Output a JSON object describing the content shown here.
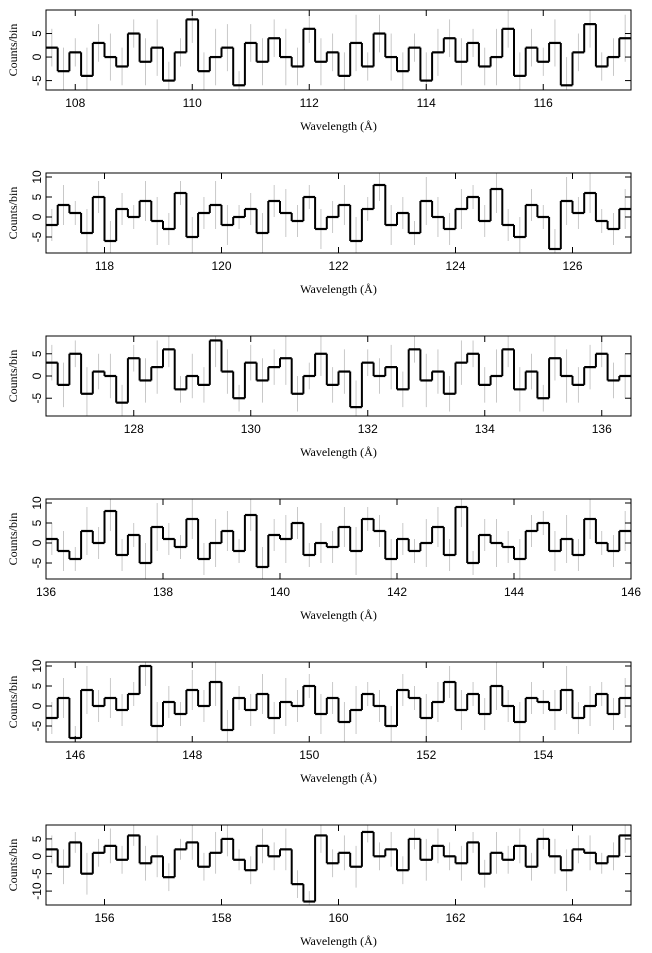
{
  "chart_data": [
    {
      "type": "step",
      "xlabel": "Wavelength (Å)",
      "ylabel": "Counts/bin",
      "color": "#000000",
      "error_color": "#bbbbbb",
      "xlim": [
        107.5,
        117.5
      ],
      "ylim": [
        -7,
        10
      ],
      "xticks": [
        108,
        110,
        112,
        114,
        116
      ],
      "yticks": [
        -5,
        0,
        5
      ],
      "x": [
        107.6,
        107.8,
        108,
        108.2,
        108.4,
        108.6,
        108.8,
        109,
        109.2,
        109.4,
        109.6,
        109.8,
        110,
        110.2,
        110.4,
        110.6,
        110.8,
        111,
        111.2,
        111.4,
        111.6,
        111.8,
        112,
        112.2,
        112.4,
        112.6,
        112.8,
        113,
        113.2,
        113.4,
        113.6,
        113.8,
        114,
        114.2,
        114.4,
        114.6,
        114.8,
        115,
        115.2,
        115.4,
        115.6,
        115.8,
        116,
        116.2,
        116.4,
        116.6,
        116.8,
        117,
        117.2,
        117.4
      ],
      "values": [
        2,
        -3,
        1,
        -4,
        3,
        0,
        -2,
        5,
        -1,
        2,
        -5,
        1,
        8,
        -3,
        0,
        2,
        -6,
        3,
        -1,
        4,
        0,
        -2,
        6,
        -1,
        1,
        -4,
        3,
        -2,
        5,
        0,
        -3,
        2,
        -5,
        1,
        4,
        -1,
        3,
        -2,
        0,
        6,
        -4,
        2,
        -1,
        3,
        -6,
        1,
        7,
        -2,
        0,
        4
      ],
      "errors": [
        4,
        5,
        3,
        6,
        4,
        5,
        4,
        3,
        5,
        6,
        4,
        3,
        5,
        4,
        6,
        5,
        3,
        4,
        5,
        4,
        6,
        4,
        3,
        5,
        4,
        5,
        6,
        3,
        4,
        5,
        4,
        3,
        6,
        5,
        4,
        5,
        3,
        4,
        6,
        4,
        5,
        4,
        3,
        5,
        6,
        4,
        5,
        3,
        4,
        5
      ]
    },
    {
      "type": "step",
      "xlabel": "Wavelength (Å)",
      "ylabel": "Counts/bin",
      "color": "#000000",
      "error_color": "#bbbbbb",
      "xlim": [
        117,
        127
      ],
      "ylim": [
        -9,
        11
      ],
      "xticks": [
        118,
        120,
        122,
        124,
        126
      ],
      "yticks": [
        -5,
        0,
        5,
        10
      ],
      "x": [
        117.1,
        117.3,
        117.5,
        117.7,
        117.9,
        118.1,
        118.3,
        118.5,
        118.7,
        118.9,
        119.1,
        119.3,
        119.5,
        119.7,
        119.9,
        120.1,
        120.3,
        120.5,
        120.7,
        120.9,
        121.1,
        121.3,
        121.5,
        121.7,
        121.9,
        122.1,
        122.3,
        122.5,
        122.7,
        122.9,
        123.1,
        123.3,
        123.5,
        123.7,
        123.9,
        124.1,
        124.3,
        124.5,
        124.7,
        124.9,
        125.1,
        125.3,
        125.5,
        125.7,
        125.9,
        126.1,
        126.3,
        126.5,
        126.7,
        126.9
      ],
      "values": [
        -2,
        3,
        1,
        -4,
        5,
        -6,
        2,
        0,
        4,
        -1,
        -3,
        6,
        -5,
        1,
        3,
        -2,
        0,
        2,
        -4,
        4,
        1,
        -1,
        5,
        -3,
        0,
        3,
        -6,
        2,
        8,
        -2,
        1,
        -4,
        4,
        0,
        -3,
        2,
        5,
        -1,
        7,
        -2,
        -5,
        3,
        0,
        -8,
        4,
        1,
        6,
        -1,
        -3,
        2
      ],
      "errors": [
        4,
        5,
        3,
        6,
        4,
        5,
        4,
        3,
        5,
        6,
        4,
        3,
        5,
        4,
        6,
        5,
        3,
        4,
        5,
        4,
        6,
        4,
        3,
        5,
        4,
        5,
        6,
        3,
        4,
        5,
        4,
        3,
        6,
        5,
        4,
        5,
        3,
        4,
        6,
        4,
        5,
        4,
        3,
        5,
        6,
        4,
        5,
        3,
        4,
        5
      ]
    },
    {
      "type": "step",
      "xlabel": "Wavelength (Å)",
      "ylabel": "Counts/bin",
      "color": "#000000",
      "error_color": "#bbbbbb",
      "xlim": [
        126.5,
        136.5
      ],
      "ylim": [
        -9,
        9
      ],
      "xticks": [
        128,
        130,
        132,
        134,
        136
      ],
      "yticks": [
        -5,
        0,
        5
      ],
      "x": [
        126.6,
        126.8,
        127,
        127.2,
        127.4,
        127.6,
        127.8,
        128,
        128.2,
        128.4,
        128.6,
        128.8,
        129,
        129.2,
        129.4,
        129.6,
        129.8,
        130,
        130.2,
        130.4,
        130.6,
        130.8,
        131,
        131.2,
        131.4,
        131.6,
        131.8,
        132,
        132.2,
        132.4,
        132.6,
        132.8,
        133,
        133.2,
        133.4,
        133.6,
        133.8,
        134,
        134.2,
        134.4,
        134.6,
        134.8,
        135,
        135.2,
        135.4,
        135.6,
        135.8,
        136,
        136.2,
        136.4
      ],
      "values": [
        3,
        -2,
        5,
        -4,
        1,
        0,
        -6,
        4,
        -1,
        2,
        6,
        -3,
        0,
        -2,
        8,
        1,
        -5,
        3,
        -1,
        2,
        4,
        -4,
        0,
        5,
        -2,
        1,
        -7,
        3,
        0,
        2,
        -3,
        6,
        -1,
        1,
        -4,
        3,
        5,
        -2,
        0,
        6,
        -3,
        1,
        -5,
        4,
        0,
        -2,
        2,
        5,
        -1,
        0
      ],
      "errors": [
        4,
        5,
        3,
        6,
        4,
        5,
        4,
        3,
        5,
        6,
        4,
        3,
        5,
        4,
        6,
        5,
        3,
        4,
        5,
        4,
        6,
        4,
        3,
        5,
        4,
        5,
        6,
        3,
        4,
        5,
        4,
        3,
        6,
        5,
        4,
        5,
        3,
        4,
        6,
        4,
        5,
        4,
        3,
        5,
        6,
        4,
        5,
        3,
        4,
        5
      ]
    },
    {
      "type": "step",
      "xlabel": "Wavelength (Å)",
      "ylabel": "Counts/bin",
      "color": "#000000",
      "error_color": "#bbbbbb",
      "xlim": [
        136,
        146
      ],
      "ylim": [
        -9,
        11
      ],
      "xticks": [
        136,
        138,
        140,
        142,
        144,
        146
      ],
      "yticks": [
        -5,
        0,
        5,
        10
      ],
      "x": [
        136.1,
        136.3,
        136.5,
        136.7,
        136.9,
        137.1,
        137.3,
        137.5,
        137.7,
        137.9,
        138.1,
        138.3,
        138.5,
        138.7,
        138.9,
        139.1,
        139.3,
        139.5,
        139.7,
        139.9,
        140.1,
        140.3,
        140.5,
        140.7,
        140.9,
        141.1,
        141.3,
        141.5,
        141.7,
        141.9,
        142.1,
        142.3,
        142.5,
        142.7,
        142.9,
        143.1,
        143.3,
        143.5,
        143.7,
        143.9,
        144.1,
        144.3,
        144.5,
        144.7,
        144.9,
        145.1,
        145.3,
        145.5,
        145.7,
        145.9
      ],
      "values": [
        1,
        -2,
        -4,
        3,
        0,
        8,
        -3,
        2,
        -5,
        4,
        1,
        -1,
        6,
        -4,
        0,
        3,
        -2,
        7,
        -6,
        2,
        1,
        5,
        -3,
        0,
        -1,
        4,
        -2,
        6,
        3,
        -4,
        1,
        -2,
        0,
        4,
        -3,
        9,
        -5,
        2,
        0,
        -1,
        -4,
        3,
        5,
        -2,
        1,
        -3,
        6,
        0,
        -2,
        3
      ],
      "errors": [
        4,
        5,
        3,
        6,
        4,
        5,
        4,
        3,
        5,
        6,
        4,
        3,
        5,
        4,
        6,
        5,
        3,
        4,
        5,
        4,
        6,
        4,
        3,
        5,
        4,
        5,
        6,
        3,
        4,
        5,
        4,
        3,
        6,
        5,
        4,
        5,
        3,
        4,
        6,
        4,
        5,
        4,
        3,
        5,
        6,
        4,
        5,
        3,
        4,
        5
      ]
    },
    {
      "type": "step",
      "xlabel": "Wavelength (Å)",
      "ylabel": "Counts/bin",
      "color": "#000000",
      "error_color": "#bbbbbb",
      "xlim": [
        145.5,
        155.5
      ],
      "ylim": [
        -9,
        11
      ],
      "xticks": [
        146,
        148,
        150,
        152,
        154
      ],
      "yticks": [
        -5,
        0,
        5,
        10
      ],
      "x": [
        145.6,
        145.8,
        146,
        146.2,
        146.4,
        146.6,
        146.8,
        147,
        147.2,
        147.4,
        147.6,
        147.8,
        148,
        148.2,
        148.4,
        148.6,
        148.8,
        149,
        149.2,
        149.4,
        149.6,
        149.8,
        150,
        150.2,
        150.4,
        150.6,
        150.8,
        151,
        151.2,
        151.4,
        151.6,
        151.8,
        152,
        152.2,
        152.4,
        152.6,
        152.8,
        153,
        153.2,
        153.4,
        153.6,
        153.8,
        154,
        154.2,
        154.4,
        154.6,
        154.8,
        155,
        155.2,
        155.4
      ],
      "values": [
        -3,
        2,
        -8,
        4,
        0,
        2,
        -1,
        3,
        10,
        -5,
        1,
        -2,
        4,
        0,
        6,
        -6,
        2,
        -1,
        3,
        -3,
        1,
        0,
        5,
        -2,
        2,
        -4,
        -1,
        3,
        0,
        -5,
        4,
        2,
        -3,
        1,
        6,
        -1,
        3,
        -2,
        5,
        0,
        -4,
        2,
        1,
        -1,
        4,
        -3,
        0,
        3,
        -2,
        2
      ],
      "errors": [
        4,
        5,
        3,
        6,
        4,
        5,
        4,
        3,
        5,
        6,
        4,
        3,
        5,
        4,
        6,
        5,
        3,
        4,
        5,
        4,
        6,
        4,
        3,
        5,
        4,
        5,
        6,
        3,
        4,
        5,
        4,
        3,
        6,
        5,
        4,
        5,
        3,
        4,
        6,
        4,
        5,
        4,
        3,
        5,
        6,
        4,
        5,
        3,
        4,
        5
      ]
    },
    {
      "type": "step",
      "xlabel": "Wavelength (Å)",
      "ylabel": "Counts/bin",
      "color": "#000000",
      "error_color": "#bbbbbb",
      "xlim": [
        155,
        165
      ],
      "ylim": [
        -14,
        9
      ],
      "xticks": [
        156,
        158,
        160,
        162,
        164
      ],
      "yticks": [
        -10,
        -5,
        0,
        5
      ],
      "x": [
        155.1,
        155.3,
        155.5,
        155.7,
        155.9,
        156.1,
        156.3,
        156.5,
        156.7,
        156.9,
        157.1,
        157.3,
        157.5,
        157.7,
        157.9,
        158.1,
        158.3,
        158.5,
        158.7,
        158.9,
        159.1,
        159.3,
        159.5,
        159.7,
        159.9,
        160.1,
        160.3,
        160.5,
        160.7,
        160.9,
        161.1,
        161.3,
        161.5,
        161.7,
        161.9,
        162.1,
        162.3,
        162.5,
        162.7,
        162.9,
        163.1,
        163.3,
        163.5,
        163.7,
        163.9,
        164.1,
        164.3,
        164.5,
        164.7,
        164.9
      ],
      "values": [
        2,
        -3,
        4,
        -5,
        1,
        3,
        -1,
        6,
        -2,
        0,
        -6,
        2,
        4,
        -3,
        1,
        5,
        -1,
        -4,
        3,
        0,
        2,
        -8,
        -13,
        6,
        -2,
        1,
        -3,
        7,
        0,
        2,
        -4,
        5,
        -1,
        3,
        0,
        -2,
        4,
        -5,
        1,
        -1,
        3,
        -3,
        5,
        0,
        -4,
        2,
        1,
        -2,
        0,
        6
      ],
      "errors": [
        4,
        5,
        3,
        6,
        4,
        5,
        4,
        3,
        5,
        6,
        4,
        3,
        5,
        4,
        6,
        5,
        3,
        4,
        5,
        4,
        6,
        4,
        3,
        5,
        4,
        5,
        6,
        3,
        4,
        5,
        4,
        3,
        6,
        5,
        4,
        5,
        3,
        4,
        6,
        4,
        5,
        4,
        3,
        5,
        6,
        4,
        5,
        3,
        4,
        5
      ]
    }
  ]
}
